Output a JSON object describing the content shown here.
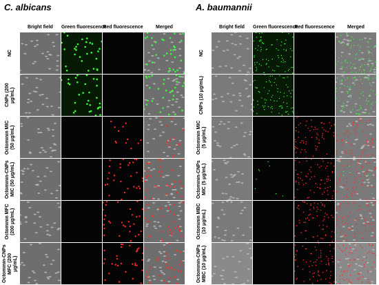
{
  "panels": [
    {
      "title": "C. albicans",
      "columns": [
        "Bright field",
        "Green fluorescence",
        "Red fluorescence",
        "Merged"
      ],
      "rows": [
        "NC",
        "CNPs (200 μg/mL)",
        "Octominin MIC (50 μg/mL)",
        "Octominin-CNPs MIC (50 μg/mL)",
        "Octominin MFC (200 μg/mL)",
        "Octominin-CNPs MFC (200 μg/mL)"
      ]
    },
    {
      "title": "A. baumannii",
      "columns": [
        "Bright field",
        "Green fluorescence",
        "Red fluorescence",
        "Merged"
      ],
      "rows": [
        "NC",
        "CNPs (10 μg/mL)",
        "Octominin MIC (5 μg/mL)",
        "Octominin-CNPs MIC (5 μg/mL)",
        "Octominin MBC (10 μg/mL)",
        "Octominin-CNPs MBC (10 μg/mL)"
      ]
    }
  ]
}
